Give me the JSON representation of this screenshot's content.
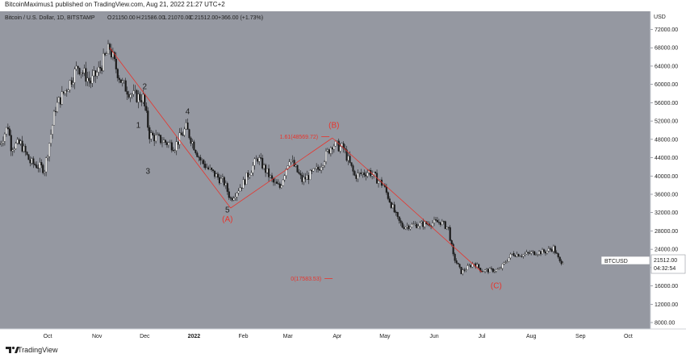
{
  "header": {
    "publisher_line": "BitcoinMaximus1 published on TradingView.com, Aug 21, 2022 21:27 UTC+2"
  },
  "footer": {
    "brand": "TradingView"
  },
  "chart_data": {
    "type": "candlestick",
    "title": "Bitcoin / U.S. Dollar, 1D, BITSTAMP",
    "ohlc_line": {
      "o_label": "O",
      "o": "21150.00",
      "h_label": "H",
      "h": "21586.00",
      "l_label": "L",
      "l": "21070.00",
      "c_label": "C",
      "c": "21512.00",
      "change": "+366.00 (+1.73%)"
    },
    "currency_label": "USD",
    "symbol": "BTCUSD",
    "last_price": "21512.00",
    "countdown": "04:32:54",
    "background": "#9598a1",
    "annotation_color": "#e8342c",
    "wave_label_color": "#1e1e1e",
    "y_axis_ticks": [
      "72000.00",
      "68000.00",
      "64000.00",
      "60000.00",
      "56000.00",
      "52000.00",
      "48000.00",
      "44000.00",
      "40000.00",
      "36000.00",
      "32000.00",
      "28000.00",
      "24000.00",
      "20000.00",
      "16000.00",
      "12000.00",
      "8000.00"
    ],
    "ylim": [
      8000,
      73500
    ],
    "x_axis_ticks": [
      "Oct",
      "Nov",
      "Dec",
      "2022",
      "Feb",
      "Mar",
      "Apr",
      "May",
      "Jun",
      "Jul",
      "Aug",
      "Sep",
      "Oct"
    ],
    "x_axis_dates": [
      "2021-10-01",
      "2021-11-01",
      "2021-12-01",
      "2022-01-01",
      "2022-02-01",
      "2022-03-01",
      "2022-04-01",
      "2022-05-01",
      "2022-06-01",
      "2022-07-01",
      "2022-08-01",
      "2022-09-01",
      "2022-10-01"
    ],
    "x_range": [
      "2021-09-01",
      "2022-10-15"
    ],
    "price_path": [
      [
        "2021-09-01",
        47000
      ],
      [
        "2021-09-06",
        51000
      ],
      [
        "2021-09-08",
        46500
      ],
      [
        "2021-09-14",
        47000
      ],
      [
        "2021-09-20",
        43000
      ],
      [
        "2021-09-29",
        41500
      ],
      [
        "2021-10-06",
        55000
      ],
      [
        "2021-10-15",
        60500
      ],
      [
        "2021-10-20",
        64000
      ],
      [
        "2021-10-28",
        60500
      ],
      [
        "2021-11-02",
        63000
      ],
      [
        "2021-11-09",
        68000
      ],
      [
        "2021-11-12",
        64500
      ],
      [
        "2021-11-17",
        60000
      ],
      [
        "2021-11-24",
        57500
      ],
      [
        "2021-11-30",
        57000
      ],
      [
        "2021-12-04",
        49000
      ],
      [
        "2021-12-10",
        48000
      ],
      [
        "2021-12-20",
        46500
      ],
      [
        "2021-12-27",
        50500
      ],
      [
        "2022-01-05",
        43500
      ],
      [
        "2022-01-10",
        41500
      ],
      [
        "2022-01-20",
        38500
      ],
      [
        "2022-01-24",
        35000
      ],
      [
        "2022-02-01",
        38500
      ],
      [
        "2022-02-10",
        44000
      ],
      [
        "2022-02-20",
        38500
      ],
      [
        "2022-02-24",
        37500
      ],
      [
        "2022-03-02",
        44000
      ],
      [
        "2022-03-10",
        39000
      ],
      [
        "2022-03-20",
        41500
      ],
      [
        "2022-03-29",
        47000
      ],
      [
        "2022-04-05",
        46000
      ],
      [
        "2022-04-12",
        40000
      ],
      [
        "2022-04-21",
        41000
      ],
      [
        "2022-04-30",
        38000
      ],
      [
        "2022-05-09",
        30500
      ],
      [
        "2022-05-12",
        29000
      ],
      [
        "2022-05-25",
        29500
      ],
      [
        "2022-06-05",
        30000
      ],
      [
        "2022-06-10",
        28500
      ],
      [
        "2022-06-13",
        22500
      ],
      [
        "2022-06-18",
        19000
      ],
      [
        "2022-06-26",
        21000
      ],
      [
        "2022-07-01",
        19300
      ],
      [
        "2022-07-12",
        19500
      ],
      [
        "2022-07-20",
        23000
      ],
      [
        "2022-07-27",
        22800
      ],
      [
        "2022-08-01",
        23200
      ],
      [
        "2022-08-10",
        23500
      ],
      [
        "2022-08-15",
        24300
      ],
      [
        "2022-08-19",
        21200
      ],
      [
        "2022-08-21",
        21512
      ]
    ],
    "annotations": {
      "wave_labels": [
        {
          "text": "2",
          "date": "2021-12-01",
          "price": 59000
        },
        {
          "text": "1",
          "date": "2021-11-27",
          "price": 50500
        },
        {
          "text": "4",
          "date": "2021-12-28",
          "price": 53500
        },
        {
          "text": "3",
          "date": "2021-12-03",
          "price": 40500
        },
        {
          "text": "5",
          "date": "2022-01-22",
          "price": 32000
        }
      ],
      "corrective_labels": [
        {
          "text": "(A)",
          "date": "2022-01-22",
          "price": 30000
        },
        {
          "text": "(B)",
          "date": "2022-03-30",
          "price": 50500
        },
        {
          "text": "(C)",
          "date": "2022-07-10",
          "price": 15500
        }
      ],
      "fib_labels": [
        {
          "text": "1.61(48569.72)",
          "date": "2022-03-20",
          "price": 48569.72
        },
        {
          "text": "0(17583.53)",
          "date": "2022-03-22",
          "price": 17583.53
        }
      ],
      "trend_lines": [
        [
          [
            "2021-11-09",
            68000
          ],
          [
            "2022-01-24",
            33000
          ]
        ],
        [
          [
            "2022-01-24",
            33000
          ],
          [
            "2022-03-29",
            48300
          ]
        ],
        [
          [
            "2022-03-29",
            48300
          ],
          [
            "2022-07-01",
            19000
          ]
        ]
      ]
    }
  }
}
